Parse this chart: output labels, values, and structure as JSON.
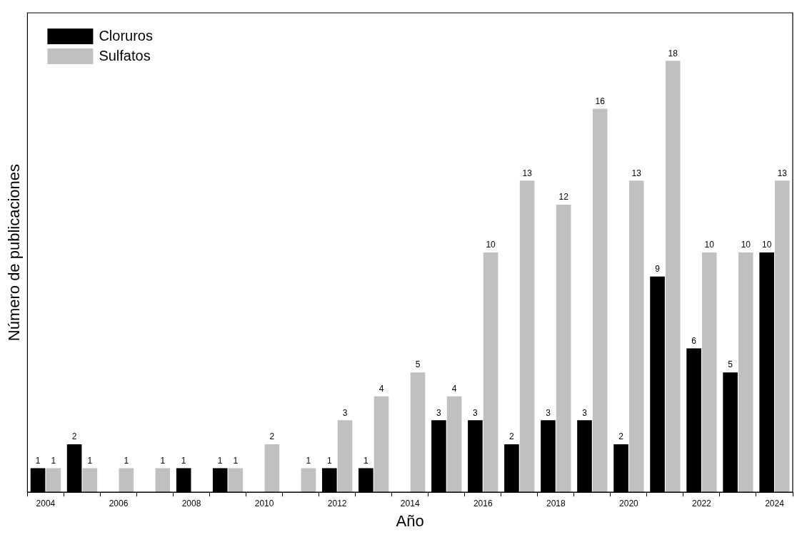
{
  "chart_data": {
    "type": "bar",
    "xlabel": "Año",
    "ylabel": "Número de publicaciones",
    "categories": [
      "2004",
      null,
      "2006",
      null,
      "2008",
      null,
      "2010",
      null,
      "2012",
      null,
      "2014",
      null,
      "2016",
      null,
      "2018",
      null,
      "2020",
      null,
      "2022",
      null,
      "2024"
    ],
    "series": [
      {
        "name": "Cloruros",
        "color": "#000000",
        "values": [
          1,
          2,
          null,
          null,
          1,
          1,
          null,
          null,
          1,
          1,
          null,
          3,
          3,
          2,
          3,
          3,
          2,
          9,
          6,
          5,
          10
        ]
      },
      {
        "name": "Sulfatos",
        "color": "#c0c0c0",
        "values": [
          1,
          1,
          1,
          1,
          null,
          1,
          2,
          1,
          3,
          4,
          5,
          4,
          10,
          13,
          12,
          16,
          13,
          18,
          10,
          10,
          13
        ]
      }
    ],
    "data_labels": true,
    "legend": "top left",
    "tick_labels": "x"
  }
}
